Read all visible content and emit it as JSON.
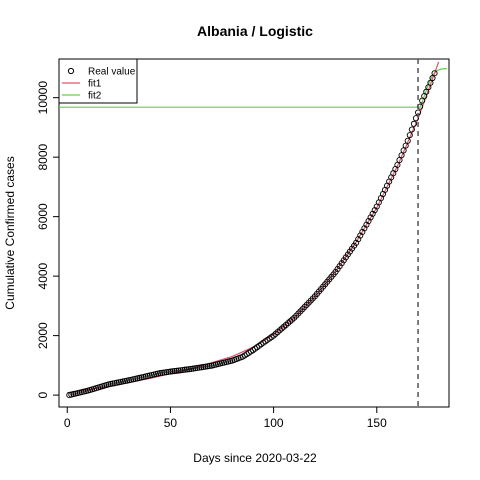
{
  "chart_data": {
    "type": "scatter",
    "title": "Albania / Logistic",
    "xlabel": "Days since 2020-03-22",
    "ylabel": "Cumulative Confirmed cases",
    "xlim": [
      -4,
      185
    ],
    "ylim": [
      -400,
      11300
    ],
    "xticks": [
      0,
      50,
      100,
      150
    ],
    "yticks": [
      0,
      2000,
      4000,
      6000,
      8000,
      10000
    ],
    "vline_x": 170,
    "legend": {
      "placement": "top-left",
      "entries": [
        "Real value",
        "fit1",
        "fit2"
      ]
    },
    "series": [
      {
        "name": "Real value",
        "style": "points",
        "color": "#000000",
        "x": [
          1,
          10,
          20,
          30,
          40,
          45,
          50,
          60,
          70,
          80,
          85,
          90,
          95,
          100,
          110,
          120,
          130,
          140,
          150,
          160,
          165,
          170,
          172,
          174,
          176,
          178
        ],
        "y": [
          0,
          150,
          360,
          500,
          660,
          740,
          790,
          880,
          990,
          1160,
          1290,
          1510,
          1760,
          2000,
          2600,
          3320,
          4140,
          5120,
          6340,
          7740,
          8550,
          9500,
          9900,
          10200,
          10500,
          10820
        ]
      },
      {
        "name": "fit1",
        "style": "line",
        "color": "#df536b",
        "x": [
          0,
          20,
          40,
          60,
          80,
          90,
          100,
          110,
          120,
          130,
          140,
          150,
          160,
          170,
          180
        ],
        "y": [
          80,
          290,
          560,
          880,
          1300,
          1610,
          2030,
          2600,
          3310,
          4160,
          5150,
          6300,
          7700,
          9300,
          11200
        ]
      },
      {
        "name": "fit2",
        "style": "line",
        "color": "#61d04f",
        "x": [
          -4,
          171,
          173,
          175,
          177,
          179,
          181,
          184
        ],
        "y": [
          9680,
          9680,
          10050,
          10450,
          10750,
          10900,
          10960,
          10980
        ]
      }
    ]
  }
}
